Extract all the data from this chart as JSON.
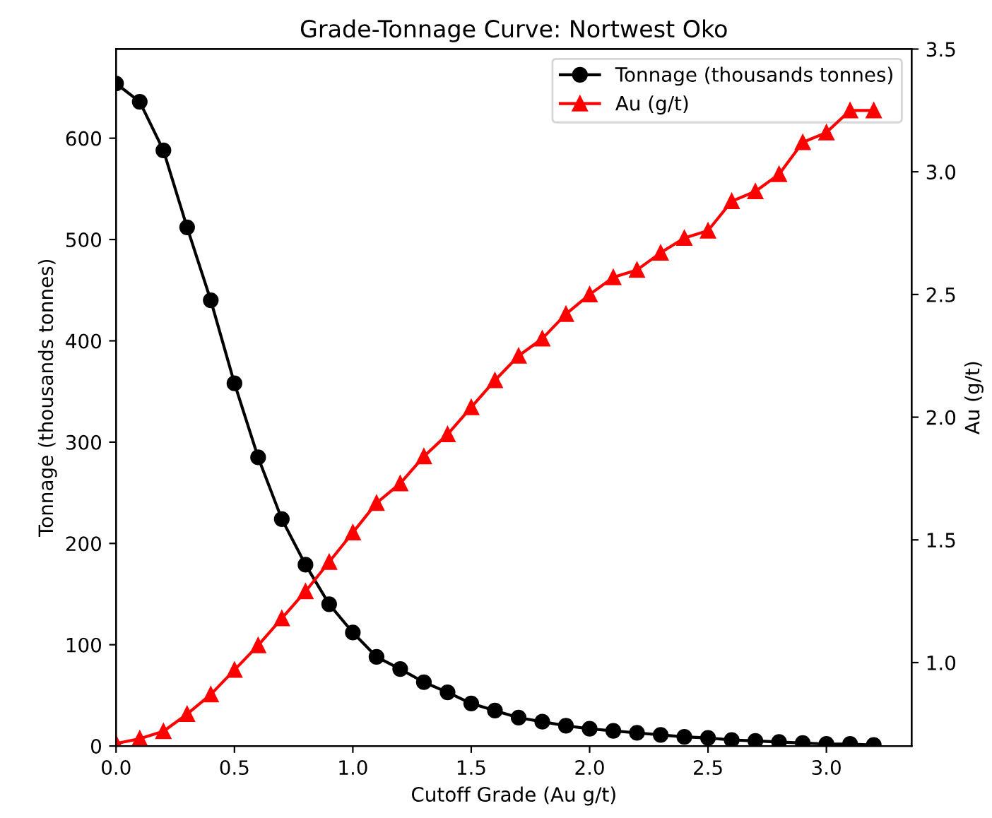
{
  "chart_data": {
    "type": "line",
    "title": "Grade-Tonnage Curve: Nortwest Oko",
    "xlabel": "Cutoff Grade (Au g/t)",
    "ylabel": "Tonnage (thousands tonnes)",
    "y2label": "Au (g/t)",
    "x": [
      0.0,
      0.1,
      0.2,
      0.3,
      0.4,
      0.5,
      0.6,
      0.7,
      0.8,
      0.9,
      1.0,
      1.1,
      1.2,
      1.3,
      1.4,
      1.5,
      1.6,
      1.7,
      1.8,
      1.9,
      2.0,
      2.1,
      2.2,
      2.3,
      2.4,
      2.5,
      2.6,
      2.7,
      2.8,
      2.9,
      3.0,
      3.1,
      3.2
    ],
    "series": [
      {
        "name": "Tonnage (thousands tonnes)",
        "color": "#000000",
        "marker": "circle",
        "values": [
          654,
          636,
          588,
          512,
          440,
          358,
          285,
          224,
          179,
          140,
          112,
          88,
          76,
          63,
          53,
          42,
          35,
          28,
          24,
          20,
          17,
          15,
          13,
          11,
          9,
          8,
          6,
          5,
          4,
          3,
          2,
          2,
          1
        ]
      },
      {
        "name": "Au (g/t)",
        "color": "#ff0000",
        "marker": "triangle",
        "axis": "y2",
        "values": [
          0.67,
          0.69,
          0.72,
          0.79,
          0.87,
          0.97,
          1.07,
          1.18,
          1.29,
          1.41,
          1.53,
          1.65,
          1.73,
          1.84,
          1.93,
          2.04,
          2.15,
          2.25,
          2.32,
          2.42,
          2.5,
          2.57,
          2.6,
          2.67,
          2.73,
          2.76,
          2.88,
          2.92,
          2.99,
          3.12,
          3.16,
          3.25,
          3.25
        ]
      }
    ],
    "xlim": [
      0,
      3.36
    ],
    "xticks": [
      {
        "value": 0,
        "label": "0.0"
      },
      0.5,
      {
        "value": 1,
        "label": "1.0"
      },
      1.5,
      {
        "value": 2,
        "label": "2.0"
      },
      2.5,
      {
        "value": 3,
        "label": "3.0"
      }
    ],
    "ylim": [
      0,
      688
    ],
    "yticks": [
      0,
      100,
      200,
      300,
      400,
      500,
      600
    ],
    "y2lim": [
      0.66,
      3.5
    ],
    "y2ticks": [
      {
        "value": 1,
        "label": "1.0"
      },
      1.5,
      {
        "value": 2,
        "label": "2.0"
      },
      2.5,
      {
        "value": 3,
        "label": "3.0"
      },
      3.5
    ],
    "legend": "top right",
    "grid": false,
    "line_style": "solid"
  }
}
